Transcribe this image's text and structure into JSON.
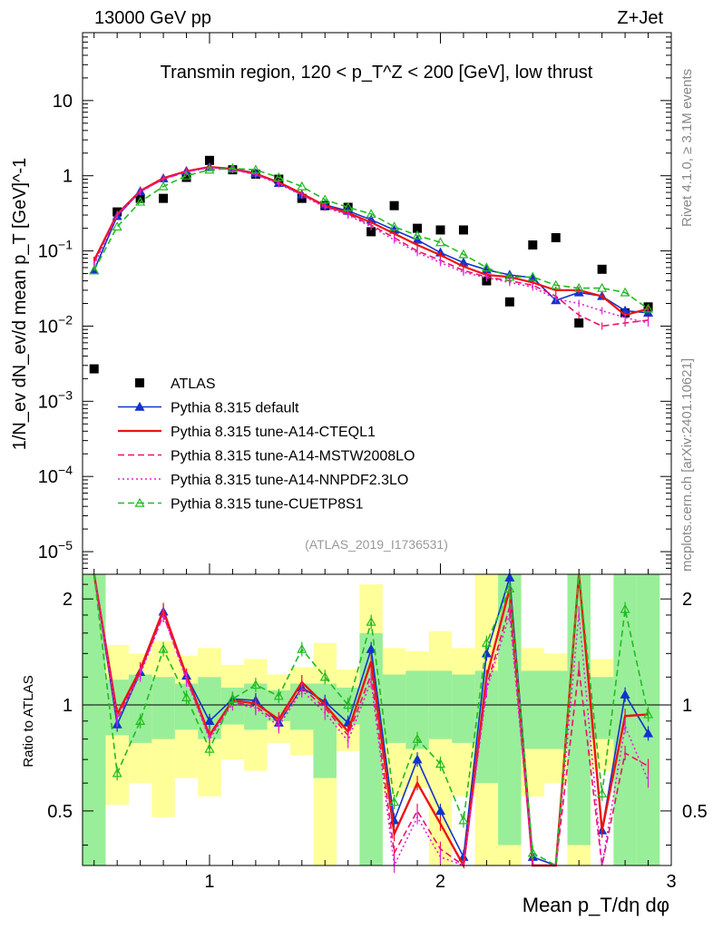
{
  "header": {
    "energy": "13000 GeV pp",
    "process": "Z+Jet"
  },
  "side_labels": {
    "rivet": "Rivet 4.1.0, ≥ 3.1M events",
    "mcplots": "mcplots.cern.ch [arXiv:2401.10621]"
  },
  "chart_data": {
    "type": "line",
    "title": "Transmin region, 120 < p_T^Z < 200 [GeV], low thrust",
    "analysis_id": "(ATLAS_2019_I1736531)",
    "xlabel": "Mean p_T/dη dφ",
    "ylabel": "1/N_ev dN_ev/d mean p_T [GeV]^-1",
    "ratio_ylabel": "Ratio to ATLAS",
    "xlim": [
      0.45,
      3.0
    ],
    "ylim": [
      5e-06,
      80
    ],
    "ratio_ylim": [
      0.35,
      2.35
    ],
    "x_ticks": [
      "1",
      "2",
      "3"
    ],
    "y_ticks": [
      "10^-5",
      "10^-4",
      "10^-3",
      "10^-2",
      "10^-1",
      "1",
      "10"
    ],
    "ratio_ticks": [
      "0.5",
      "1",
      "2"
    ],
    "legend_position": "bottom-left",
    "x": [
      0.5,
      0.6,
      0.7,
      0.8,
      0.9,
      1.0,
      1.1,
      1.2,
      1.3,
      1.4,
      1.5,
      1.6,
      1.7,
      1.8,
      1.9,
      2.0,
      2.1,
      2.2,
      2.3,
      2.4,
      2.5,
      2.6,
      2.7,
      2.8,
      2.9
    ],
    "series": [
      {
        "name": "ATLAS",
        "color": "#000000",
        "style": "data",
        "values": [
          0.0027,
          0.33,
          0.5,
          0.5,
          0.95,
          1.6,
          1.2,
          1.05,
          0.9,
          0.5,
          0.4,
          0.38,
          0.18,
          0.4,
          0.2,
          0.19,
          0.19,
          0.04,
          0.021,
          0.12,
          0.15,
          0.011,
          0.057,
          0.015,
          0.018
        ]
      },
      {
        "name": "Pythia 8.315 default",
        "color": "#1133cc",
        "style": "solid-triangle",
        "values": [
          0.055,
          0.29,
          0.62,
          0.92,
          1.15,
          1.3,
          1.25,
          1.08,
          0.8,
          0.56,
          0.41,
          0.34,
          0.26,
          0.19,
          0.14,
          0.095,
          0.07,
          0.056,
          0.048,
          0.044,
          0.022,
          0.028,
          0.025,
          0.016,
          0.015
        ]
      },
      {
        "name": "Pythia 8.315 tune-A14-CTEQL1",
        "color": "#ee1111",
        "style": "solid",
        "values": [
          0.075,
          0.31,
          0.63,
          0.93,
          1.15,
          1.31,
          1.23,
          1.06,
          0.82,
          0.58,
          0.4,
          0.32,
          0.24,
          0.17,
          0.12,
          0.088,
          0.062,
          0.048,
          0.045,
          0.038,
          0.03,
          0.03,
          0.025,
          0.014,
          0.017
        ]
      },
      {
        "name": "Pythia 8.315 tune-A14-MSTW2008LO",
        "color": "#ee1166",
        "style": "dashed",
        "values": [
          0.07,
          0.3,
          0.62,
          0.9,
          1.13,
          1.3,
          1.22,
          1.04,
          0.8,
          0.56,
          0.39,
          0.31,
          0.22,
          0.15,
          0.1,
          0.075,
          0.055,
          0.045,
          0.04,
          0.035,
          0.025,
          0.014,
          0.01,
          0.011,
          0.012
        ]
      },
      {
        "name": "Pythia 8.315 tune-A14-NNPDF2.3LO",
        "color": "#dd22dd",
        "style": "dotted",
        "values": [
          0.065,
          0.3,
          0.61,
          0.9,
          1.12,
          1.28,
          1.21,
          1.03,
          0.78,
          0.55,
          0.38,
          0.3,
          0.21,
          0.14,
          0.095,
          0.07,
          0.052,
          0.044,
          0.038,
          0.033,
          0.023,
          0.02,
          0.016,
          0.013,
          0.011
        ]
      },
      {
        "name": "Pythia 8.315 tune-CUETP8S1",
        "color": "#22bb22",
        "style": "dashed-open-triangle",
        "values": [
          0.055,
          0.21,
          0.45,
          0.72,
          1.0,
          1.2,
          1.25,
          1.2,
          0.95,
          0.72,
          0.48,
          0.38,
          0.31,
          0.21,
          0.16,
          0.13,
          0.09,
          0.06,
          0.045,
          0.045,
          0.035,
          0.032,
          0.032,
          0.028,
          0.017
        ]
      }
    ],
    "ratio_series": [
      {
        "name": "Pythia 8.315 default",
        "values": [
          20.4,
          0.88,
          1.24,
          1.84,
          1.21,
          0.9,
          1.04,
          1.03,
          0.89,
          1.12,
          1.02,
          0.89,
          1.44,
          0.47,
          0.7,
          0.5,
          0.37,
          1.4,
          2.3,
          0.37,
          0.15,
          2.55,
          0.44,
          1.07,
          0.83
        ]
      },
      {
        "name": "Pythia 8.315 tune-A14-CTEQL1",
        "values": [
          27.8,
          0.94,
          1.26,
          1.86,
          1.21,
          0.82,
          1.03,
          1.01,
          0.91,
          1.16,
          1.0,
          0.84,
          1.33,
          0.43,
          0.6,
          0.46,
          0.33,
          1.2,
          2.14,
          0.32,
          0.2,
          2.73,
          0.44,
          0.93,
          0.94
        ]
      },
      {
        "name": "Pythia 8.315 tune-A14-MSTW2008LO",
        "values": [
          26.0,
          0.91,
          1.24,
          1.8,
          1.19,
          0.81,
          1.02,
          0.99,
          0.89,
          1.12,
          0.98,
          0.82,
          1.22,
          0.38,
          0.5,
          0.39,
          0.29,
          1.13,
          1.9,
          0.29,
          0.17,
          1.27,
          0.18,
          0.73,
          0.67
        ]
      },
      {
        "name": "Pythia 8.315 tune-A14-NNPDF2.3LO",
        "values": [
          24.1,
          0.91,
          1.22,
          1.8,
          1.18,
          0.8,
          1.01,
          0.98,
          0.87,
          1.1,
          0.95,
          0.79,
          1.17,
          0.35,
          0.48,
          0.37,
          0.27,
          1.1,
          1.81,
          0.28,
          0.15,
          1.82,
          0.28,
          0.87,
          0.61
        ]
      },
      {
        "name": "Pythia 8.315 tune-CUETP8S1",
        "values": [
          20.4,
          0.64,
          0.9,
          1.44,
          1.05,
          0.75,
          1.04,
          1.14,
          1.06,
          1.44,
          1.2,
          1.0,
          1.72,
          0.53,
          0.8,
          0.68,
          0.47,
          1.5,
          2.14,
          0.38,
          0.23,
          2.9,
          0.56,
          1.87,
          0.94
        ]
      }
    ],
    "ratio_band_yellow": [
      [
        0.1,
        9.9
      ],
      [
        0.52,
        1.48
      ],
      [
        0.6,
        1.4
      ],
      [
        0.48,
        1.52
      ],
      [
        0.62,
        1.38
      ],
      [
        0.55,
        1.45
      ],
      [
        0.7,
        1.3
      ],
      [
        0.65,
        1.35
      ],
      [
        0.78,
        1.22
      ],
      [
        0.72,
        1.28
      ],
      [
        0.3,
        1.5
      ],
      [
        0.74,
        1.26
      ],
      [
        0.2,
        2.2
      ],
      [
        0.55,
        1.45
      ],
      [
        0.58,
        1.42
      ],
      [
        0.25,
        1.62
      ],
      [
        0.55,
        1.45
      ],
      [
        0.3,
        2.8
      ],
      [
        0.3,
        2.5
      ],
      [
        0.55,
        1.45
      ],
      [
        0.6,
        1.4
      ],
      [
        0.2,
        2.6
      ],
      [
        0.65,
        1.35
      ],
      [
        0.15,
        2.2
      ],
      [
        0.45,
        1.55
      ]
    ],
    "ratio_band_green": [
      [
        0.1,
        9.9
      ],
      [
        0.82,
        1.18
      ],
      [
        0.78,
        1.22
      ],
      [
        0.8,
        1.2
      ],
      [
        0.85,
        1.15
      ],
      [
        0.8,
        1.2
      ],
      [
        0.88,
        1.12
      ],
      [
        0.85,
        1.15
      ],
      [
        0.9,
        1.1
      ],
      [
        0.85,
        1.15
      ],
      [
        0.62,
        1.15
      ],
      [
        0.88,
        1.12
      ],
      [
        0.35,
        1.6
      ],
      [
        0.78,
        1.22
      ],
      [
        0.75,
        1.25
      ],
      [
        0.8,
        1.25
      ],
      [
        0.78,
        1.22
      ],
      [
        0.6,
        1.25
      ],
      [
        0.4,
        2.6
      ],
      [
        0.75,
        1.25
      ],
      [
        0.75,
        1.25
      ],
      [
        0.4,
        2.8
      ],
      [
        0.8,
        1.2
      ],
      [
        0.3,
        2.5
      ],
      [
        0.1,
        9.9
      ]
    ]
  }
}
